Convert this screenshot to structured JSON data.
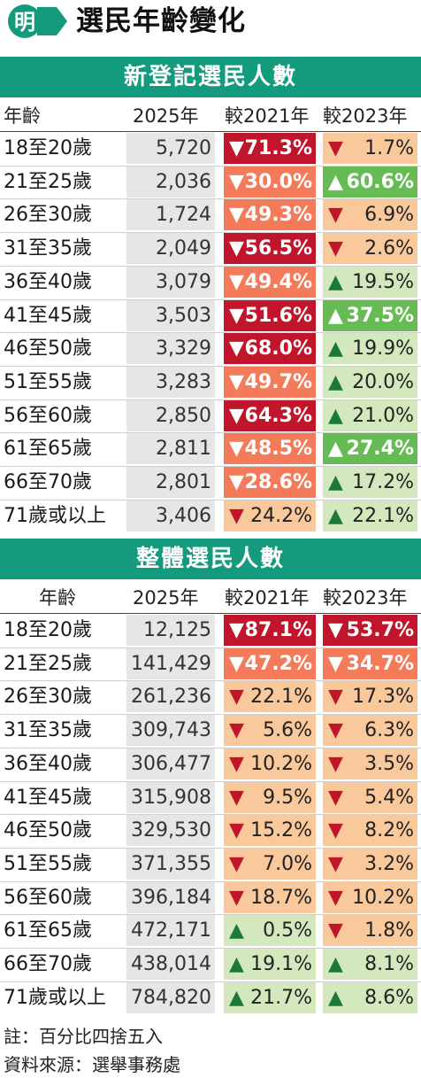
{
  "header": {
    "logo_text": "明",
    "title": "選民年齡變化"
  },
  "colors": {
    "brand_green": "#149a7c",
    "neutral_cell": "#e6e6e6",
    "down_strong": "#c0152a",
    "down_mid": "#f47b59",
    "down_light": "#f9c89b",
    "up_strong": "#67bb55",
    "up_light": "#d4e8be",
    "arrow_down": "#c0152a",
    "arrow_up": "#1b7a38"
  },
  "chart_data": [
    {
      "type": "table",
      "title": "新登記選民人數",
      "columns": [
        "年齡",
        "2025年",
        "較2021年",
        "較2023年"
      ],
      "rows": [
        {
          "age": "18至20歲",
          "count": "5,720",
          "vs2021": {
            "dir": "down",
            "value": "71.3%"
          },
          "vs2023": {
            "dir": "down",
            "value": "1.7%"
          }
        },
        {
          "age": "21至25歲",
          "count": "2,036",
          "vs2021": {
            "dir": "down",
            "value": "30.0%"
          },
          "vs2023": {
            "dir": "up",
            "value": "60.6%"
          }
        },
        {
          "age": "26至30歲",
          "count": "1,724",
          "vs2021": {
            "dir": "down",
            "value": "49.3%"
          },
          "vs2023": {
            "dir": "down",
            "value": "6.9%"
          }
        },
        {
          "age": "31至35歲",
          "count": "2,049",
          "vs2021": {
            "dir": "down",
            "value": "56.5%"
          },
          "vs2023": {
            "dir": "down",
            "value": "2.6%"
          }
        },
        {
          "age": "36至40歲",
          "count": "3,079",
          "vs2021": {
            "dir": "down",
            "value": "49.4%"
          },
          "vs2023": {
            "dir": "up",
            "value": "19.5%"
          }
        },
        {
          "age": "41至45歲",
          "count": "3,503",
          "vs2021": {
            "dir": "down",
            "value": "51.6%"
          },
          "vs2023": {
            "dir": "up",
            "value": "37.5%"
          }
        },
        {
          "age": "46至50歲",
          "count": "3,329",
          "vs2021": {
            "dir": "down",
            "value": "68.0%"
          },
          "vs2023": {
            "dir": "up",
            "value": "19.9%"
          }
        },
        {
          "age": "51至55歲",
          "count": "3,283",
          "vs2021": {
            "dir": "down",
            "value": "49.7%"
          },
          "vs2023": {
            "dir": "up",
            "value": "20.0%"
          }
        },
        {
          "age": "56至60歲",
          "count": "2,850",
          "vs2021": {
            "dir": "down",
            "value": "64.3%"
          },
          "vs2023": {
            "dir": "up",
            "value": "21.0%"
          }
        },
        {
          "age": "61至65歲",
          "count": "2,811",
          "vs2021": {
            "dir": "down",
            "value": "48.5%"
          },
          "vs2023": {
            "dir": "up",
            "value": "27.4%"
          }
        },
        {
          "age": "66至70歲",
          "count": "2,801",
          "vs2021": {
            "dir": "down",
            "value": "28.6%"
          },
          "vs2023": {
            "dir": "up",
            "value": "17.2%"
          }
        },
        {
          "age": "71歲或以上",
          "count": "3,406",
          "vs2021": {
            "dir": "down",
            "value": "24.2%"
          },
          "vs2023": {
            "dir": "up",
            "value": "22.1%"
          }
        }
      ]
    },
    {
      "type": "table",
      "title": "整體選民人數",
      "columns": [
        "年齡",
        "2025年",
        "較2021年",
        "較2023年"
      ],
      "rows": [
        {
          "age": "18至20歲",
          "count": "12,125",
          "vs2021": {
            "dir": "down",
            "value": "87.1%"
          },
          "vs2023": {
            "dir": "down",
            "value": "53.7%"
          }
        },
        {
          "age": "21至25歲",
          "count": "141,429",
          "vs2021": {
            "dir": "down",
            "value": "47.2%"
          },
          "vs2023": {
            "dir": "down",
            "value": "34.7%"
          }
        },
        {
          "age": "26至30歲",
          "count": "261,236",
          "vs2021": {
            "dir": "down",
            "value": "22.1%"
          },
          "vs2023": {
            "dir": "down",
            "value": "17.3%"
          }
        },
        {
          "age": "31至35歲",
          "count": "309,743",
          "vs2021": {
            "dir": "down",
            "value": "5.6%"
          },
          "vs2023": {
            "dir": "down",
            "value": "6.3%"
          }
        },
        {
          "age": "36至40歲",
          "count": "306,477",
          "vs2021": {
            "dir": "down",
            "value": "10.2%"
          },
          "vs2023": {
            "dir": "down",
            "value": "3.5%"
          }
        },
        {
          "age": "41至45歲",
          "count": "315,908",
          "vs2021": {
            "dir": "down",
            "value": "9.5%"
          },
          "vs2023": {
            "dir": "down",
            "value": "5.4%"
          }
        },
        {
          "age": "46至50歲",
          "count": "329,530",
          "vs2021": {
            "dir": "down",
            "value": "15.2%"
          },
          "vs2023": {
            "dir": "down",
            "value": "8.2%"
          }
        },
        {
          "age": "51至55歲",
          "count": "371,355",
          "vs2021": {
            "dir": "down",
            "value": "7.0%"
          },
          "vs2023": {
            "dir": "down",
            "value": "3.2%"
          }
        },
        {
          "age": "56至60歲",
          "count": "396,184",
          "vs2021": {
            "dir": "down",
            "value": "18.7%"
          },
          "vs2023": {
            "dir": "down",
            "value": "10.2%"
          }
        },
        {
          "age": "61至65歲",
          "count": "472,171",
          "vs2021": {
            "dir": "up",
            "value": "0.5%"
          },
          "vs2023": {
            "dir": "down",
            "value": "1.8%"
          }
        },
        {
          "age": "66至70歲",
          "count": "438,014",
          "vs2021": {
            "dir": "up",
            "value": "19.1%"
          },
          "vs2023": {
            "dir": "up",
            "value": "8.1%"
          }
        },
        {
          "age": "71歲或以上",
          "count": "784,820",
          "vs2021": {
            "dir": "up",
            "value": "21.7%"
          },
          "vs2023": {
            "dir": "up",
            "value": "8.6%"
          }
        }
      ]
    }
  ],
  "footer": {
    "note": "註：百分比四捨五入",
    "source": "資料來源：選舉事務處"
  }
}
